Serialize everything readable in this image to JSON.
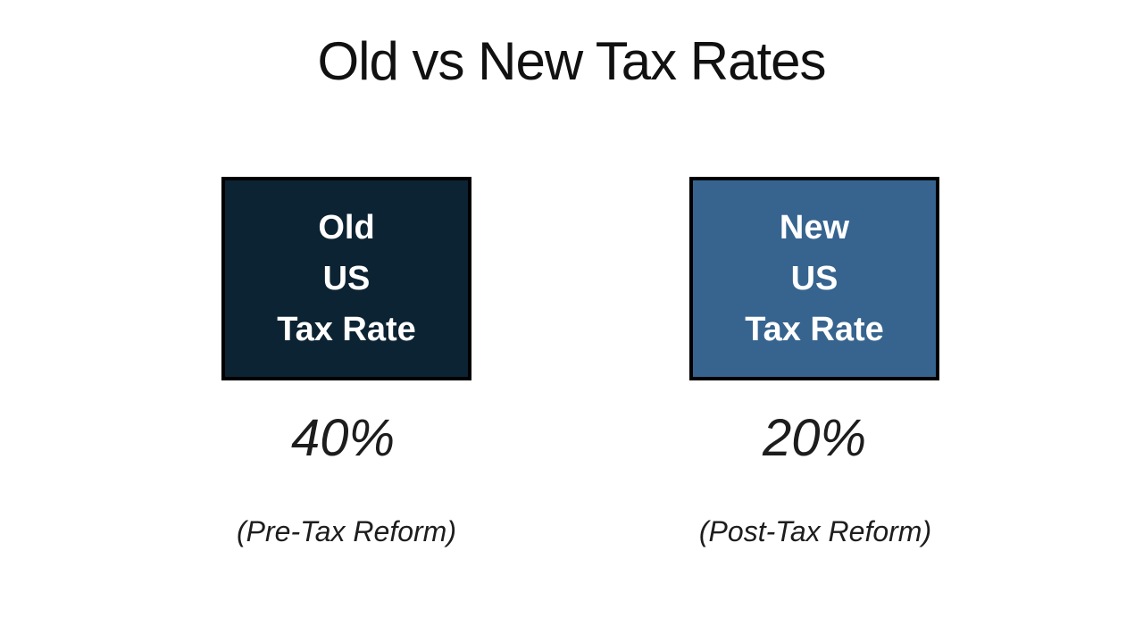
{
  "slide": {
    "title": "Old vs New Tax Rates",
    "background": "#ffffff",
    "title_color": "#111111",
    "columns": [
      {
        "id": "old",
        "lines": [
          "Old",
          "US",
          "Tax Rate"
        ],
        "rate": "40%",
        "caption": "(Pre-Tax Reform)",
        "box_fill": "#0c2333",
        "box_border": "#000000",
        "box_text_color": "#ffffff"
      },
      {
        "id": "new",
        "lines": [
          "New",
          "US",
          "Tax Rate"
        ],
        "rate": "20%",
        "caption": "(Post-Tax Reform)",
        "box_fill": "#36648f",
        "box_border": "#000000",
        "box_text_color": "#ffffff"
      }
    ]
  }
}
